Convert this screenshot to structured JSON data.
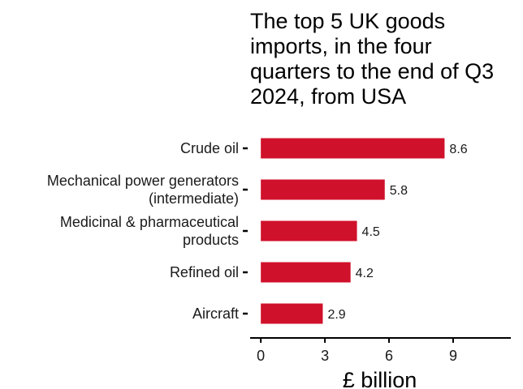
{
  "chart_data": {
    "type": "bar",
    "orientation": "horizontal",
    "title_lines": [
      "The top 5 UK goods",
      "imports, in the four",
      "quarters to the end of Q3",
      "2024, from USA"
    ],
    "categories": [
      [
        "Crude oil"
      ],
      [
        "Mechanical power generators",
        "(intermediate)"
      ],
      [
        "Medicinal & pharmaceutical",
        "products"
      ],
      [
        "Refined oil"
      ],
      [
        "Aircraft"
      ]
    ],
    "values": [
      8.6,
      5.8,
      4.5,
      4.2,
      2.9
    ],
    "data_labels": [
      "8.6",
      "5.8",
      "4.5",
      "4.2",
      "2.9"
    ],
    "xlabel": "£ billion",
    "xticks": [
      0,
      3,
      6,
      9
    ],
    "xlim": [
      -0.5,
      11.7
    ],
    "bar_color": "#d0112b",
    "grid": false
  }
}
